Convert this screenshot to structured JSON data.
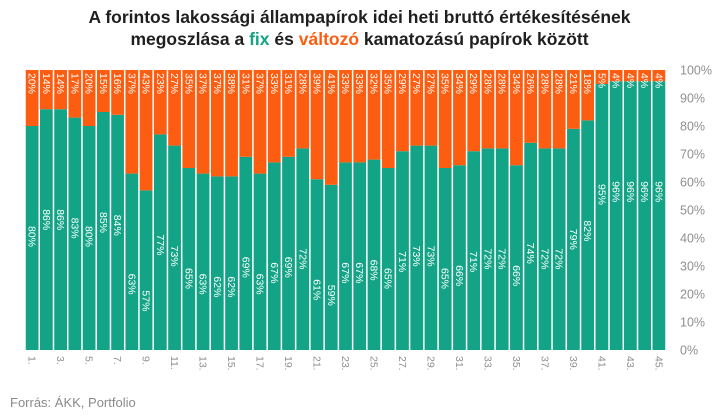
{
  "title": {
    "line1": "A forintos lakossági állampapírok idei heti bruttó értékesítésének",
    "line2_prefix": "megoszlása a ",
    "fix_word": "fix",
    "line2_mid": " és ",
    "valtozo_word": "változó",
    "line2_suffix": " kamatozású papírok között"
  },
  "source": "Forrás: ÁKK, Portfolio",
  "colors": {
    "fix": "#13a386",
    "valtozo": "#fd5d10"
  },
  "chart_data": {
    "type": "bar",
    "stacked": true,
    "categories": [
      "1.",
      "2.",
      "3.",
      "4.",
      "5.",
      "6.",
      "7.",
      "8.",
      "9.",
      "10.",
      "11.",
      "12.",
      "13.",
      "14.",
      "15.",
      "16.",
      "17.",
      "18.",
      "19.",
      "20.",
      "21.",
      "22.",
      "23.",
      "24.",
      "25.",
      "26.",
      "27.",
      "28.",
      "29.",
      "30.",
      "31.",
      "32.",
      "33.",
      "34.",
      "35.",
      "36.",
      "37.",
      "38.",
      "39.",
      "40.",
      "41.",
      "42.",
      "43.",
      "44.",
      "45."
    ],
    "x_tick_labels": [
      "1.",
      "",
      "3.",
      "",
      "5.",
      "",
      "7.",
      "",
      "9.",
      "",
      "11.",
      "",
      "13.",
      "",
      "15.",
      "",
      "17.",
      "",
      "19.",
      "",
      "21.",
      "",
      "23.",
      "",
      "25.",
      "",
      "27.",
      "",
      "29.",
      "",
      "31.",
      "",
      "33.",
      "",
      "35.",
      "",
      "37.",
      "",
      "39.",
      "",
      "41.",
      "",
      "43.",
      "",
      "45."
    ],
    "series": [
      {
        "name": "fix",
        "values": [
          80,
          86,
          86,
          83,
          80,
          85,
          84,
          63,
          57,
          77,
          73,
          65,
          63,
          62,
          62,
          69,
          63,
          67,
          69,
          72,
          61,
          59,
          67,
          67,
          68,
          65,
          71,
          73,
          73,
          65,
          66,
          71,
          72,
          72,
          66,
          74,
          72,
          72,
          79,
          82,
          95,
          96,
          96,
          96,
          96
        ]
      },
      {
        "name": "változó",
        "values": [
          20,
          14,
          14,
          17,
          20,
          15,
          16,
          37,
          43,
          23,
          27,
          35,
          37,
          37,
          38,
          31,
          37,
          33,
          31,
          28,
          39,
          41,
          33,
          33,
          32,
          35,
          29,
          27,
          27,
          35,
          34,
          29,
          28,
          28,
          34,
          26,
          28,
          28,
          21,
          18,
          5,
          4,
          4,
          4,
          4
        ]
      }
    ],
    "label_suffix": "%",
    "ylim": [
      0,
      100
    ],
    "y_tick_labels": [
      "0%",
      "10%",
      "20%",
      "30%",
      "40%",
      "50%",
      "60%",
      "70%",
      "80%",
      "90%",
      "100%"
    ],
    "grid": false,
    "legend": "none"
  }
}
